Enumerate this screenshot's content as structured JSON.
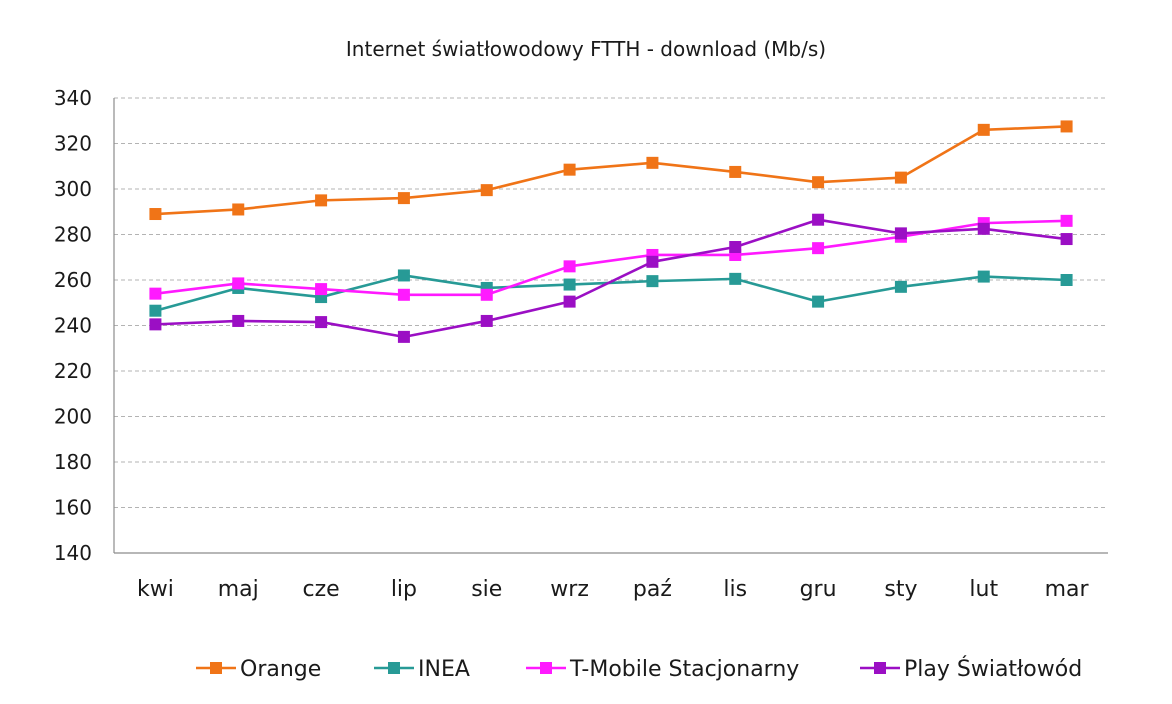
{
  "chart_data": {
    "type": "line",
    "title": "Internet  światłowodowy FTTH - download (Mb/s)",
    "xlabel": "",
    "ylabel": "",
    "categories": [
      "kwi",
      "maj",
      "cze",
      "lip",
      "sie",
      "wrz",
      "paź",
      "lis",
      "gru",
      "sty",
      "lut",
      "mar"
    ],
    "ylim": [
      140,
      340
    ],
    "yticks": [
      140,
      160,
      180,
      200,
      220,
      240,
      260,
      280,
      300,
      320,
      340
    ],
    "grid": true,
    "legend_position": "bottom",
    "series": [
      {
        "name": "Orange",
        "color": "#f07417",
        "values": [
          289,
          291,
          295,
          296,
          299.5,
          308.5,
          311.5,
          307.5,
          303,
          305,
          326,
          327.5
        ]
      },
      {
        "name": "INEA",
        "color": "#279a96",
        "values": [
          246.5,
          256.5,
          252.5,
          262,
          256.5,
          258,
          259.5,
          260.5,
          250.5,
          257,
          261.5,
          260
        ]
      },
      {
        "name": "T-Mobile Stacjonarny",
        "color": "#ff1aff",
        "values": [
          254,
          258.5,
          256,
          253.5,
          253.5,
          266,
          271,
          271,
          274,
          279,
          285,
          286
        ]
      },
      {
        "name": "Play Światłowód",
        "color": "#9b0fc4",
        "values": [
          240.5,
          242,
          241.5,
          235,
          242,
          250.5,
          268,
          274.5,
          286.5,
          280.5,
          282.5,
          278
        ]
      }
    ]
  }
}
